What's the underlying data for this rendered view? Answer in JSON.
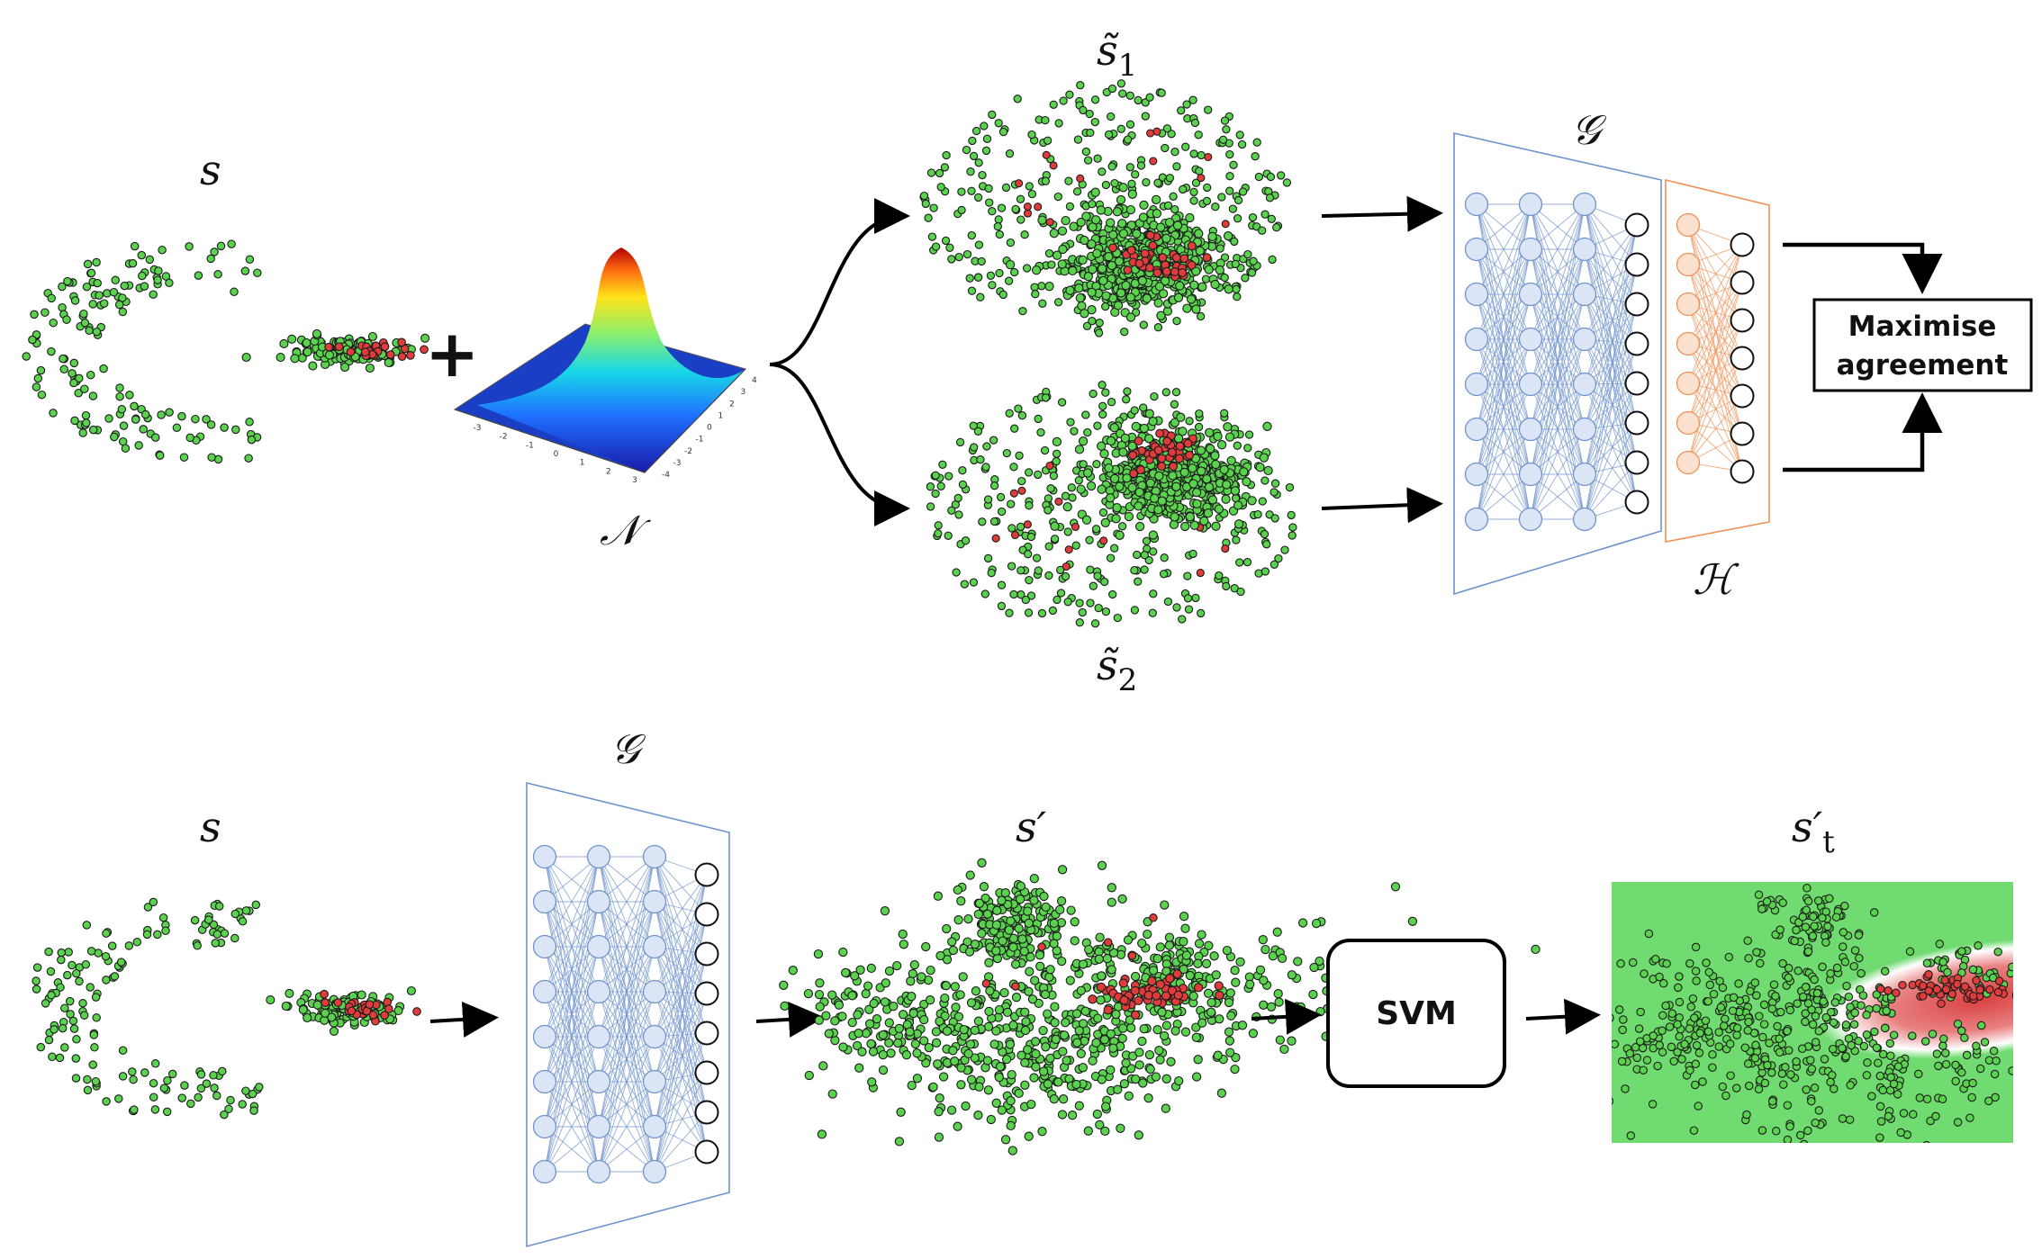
{
  "colors": {
    "green_point": "#5ad24e",
    "red_point": "#e03c3c",
    "encoder_blue": "#6f93cc",
    "encoder_node_fill": "#dbe5f5",
    "projector_orange": "#ef9155",
    "projector_node_fill": "#fbe1cf",
    "svm_bg": "#70db70"
  },
  "top": {
    "input_label": "s",
    "plus": "+",
    "noise_label": "𝒩",
    "view1_label": "s̃",
    "view1_sub": "1",
    "view2_label": "s̃",
    "view2_sub": "2",
    "encoder_label": "𝒢",
    "projector_label": "ℋ",
    "objective_line1": "Maximise",
    "objective_line2": "agreement",
    "gaussian_x_ticks": [
      "-3",
      "-2",
      "-1",
      "0",
      "1",
      "2",
      "3"
    ],
    "gaussian_y_ticks": [
      "-4",
      "-3",
      "-2",
      "-1",
      "0",
      "1",
      "2",
      "3",
      "4"
    ]
  },
  "bottom": {
    "input_label": "s",
    "encoder_label": "𝒢",
    "embedding_label": "s′",
    "classifier_label": "SVM",
    "output_label": "s′",
    "output_sub": "t"
  }
}
